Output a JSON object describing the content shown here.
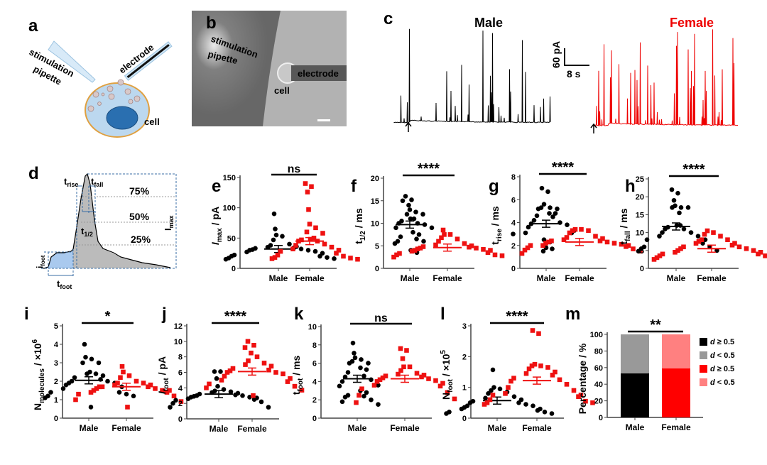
{
  "panel_letters": {
    "a": "a",
    "b": "b",
    "c": "c",
    "d": "d",
    "e": "e",
    "f": "f",
    "g": "g",
    "h": "h",
    "i": "i",
    "j": "j",
    "k": "k",
    "l": "l",
    "m": "m"
  },
  "panel_a": {
    "pipette_label_1": "stimulation",
    "pipette_label_2": "pipette",
    "electrode_label": "electrode",
    "cell_label": "cell",
    "colors": {
      "cytoplasm": "#bcd8ef",
      "membrane": "#e0a040",
      "nucleus": "#2a6fb0"
    }
  },
  "panel_b": {
    "pipette_label_1": "stimulation",
    "pipette_label_2": "pipette",
    "electrode_label": "electrode",
    "cell_label": "cell"
  },
  "panel_c": {
    "male_label": "Male",
    "female_label": "Female",
    "scale_y": "60 pA",
    "scale_x": "8 s",
    "colors": {
      "male": "#000000",
      "female": "#ee0000"
    }
  },
  "panel_d": {
    "t_rise": "t",
    "t_rise_sub": "rise",
    "t_fall": "t",
    "t_fall_sub": "fall",
    "p75": "75%",
    "p50": "50%",
    "p25": "25%",
    "imax": "I",
    "imax_sub": "max",
    "thalf": "t",
    "thalf_sub": "1/2",
    "ifoot": "i",
    "ifoot_sub": "foot",
    "tfoot": "t",
    "tfoot_sub": "foot"
  },
  "chart_data": [
    {
      "panel": "e",
      "type": "scatter",
      "categories": [
        "Male",
        "Female"
      ],
      "ylabel": {
        "base": "I",
        "sub": "max",
        "unit": " / pA",
        "italic": true
      },
      "ylim": [
        0,
        150
      ],
      "yticks": [
        "0",
        "50",
        "100",
        "150"
      ],
      "significance": "ns",
      "series": [
        {
          "values": [
            90,
            65,
            55,
            53,
            47,
            40,
            38,
            36,
            35,
            34,
            33,
            32,
            31,
            30,
            30,
            28,
            27,
            25,
            22,
            20,
            20,
            18,
            17,
            16,
            15
          ],
          "mean": 32
        },
        {
          "values": [
            140,
            135,
            126,
            97,
            73,
            67,
            60,
            58,
            50,
            48,
            47,
            45,
            45,
            40,
            38,
            35,
            32,
            30,
            28,
            25,
            22,
            20,
            18,
            17,
            16,
            15
          ],
          "mean": 45
        }
      ]
    },
    {
      "panel": "f",
      "type": "scatter",
      "categories": [
        "Male",
        "Female"
      ],
      "ylabel": {
        "base": "t",
        "sub": "1/2",
        "unit": " / ms",
        "italic": false
      },
      "ylim": [
        0,
        20
      ],
      "yticks": [
        "0",
        "5",
        "10",
        "15",
        "20"
      ],
      "significance": "****",
      "series": [
        {
          "values": [
            16,
            15,
            15.2,
            14,
            13,
            12.5,
            12,
            12,
            11,
            11,
            10.5,
            10,
            10,
            9.7,
            9,
            9,
            8,
            7.5,
            7,
            6.5,
            6,
            6,
            5.5,
            4,
            3.5
          ],
          "mean": 9.7
        },
        {
          "values": [
            8.5,
            7.5,
            7.5,
            6.8,
            6.5,
            6,
            5.5,
            5.2,
            5,
            4.8,
            4.7,
            4.5,
            4.5,
            4.3,
            4.2,
            4,
            4,
            3.8,
            3.5,
            3.3,
            3,
            3,
            2.8,
            2.5
          ],
          "mean": 4.6
        }
      ]
    },
    {
      "panel": "g",
      "type": "scatter",
      "categories": [
        "Male",
        "Female"
      ],
      "ylabel": {
        "base": "t",
        "sub": "rise",
        "unit": " / ms",
        "italic": false
      },
      "ylim": [
        0,
        8
      ],
      "yticks": [
        "0",
        "2",
        "4",
        "6",
        "8"
      ],
      "significance": "****",
      "series": [
        {
          "values": [
            7,
            6.7,
            5.6,
            5.3,
            5.3,
            5.2,
            5.2,
            4.8,
            4.8,
            4.6,
            4.5,
            4.2,
            4,
            3.9,
            3.8,
            3.6,
            3.3,
            3.1,
            3.1,
            3,
            2.5,
            2.3,
            1.8,
            1.7,
            1.5
          ],
          "mean": 3.9
        },
        {
          "values": [
            3.4,
            3.4,
            3.3,
            3.3,
            3.1,
            2.8,
            2.7,
            2.6,
            2.5,
            2.4,
            2.4,
            2.3,
            2.3,
            2.2,
            2.2,
            2.1,
            2,
            2,
            2,
            1.9,
            1.8,
            1.7,
            1.6,
            1.5,
            1.3
          ],
          "mean": 2.3
        }
      ]
    },
    {
      "panel": "h",
      "type": "scatter",
      "categories": [
        "Male",
        "Female"
      ],
      "ylabel": {
        "base": "t",
        "sub": "fall",
        "unit": " / ms",
        "italic": false
      },
      "ylim": [
        0,
        25
      ],
      "yticks": [
        "0",
        "5",
        "10",
        "15",
        "20",
        "25"
      ],
      "significance": "****",
      "series": [
        {
          "values": [
            22,
            21,
            19,
            17.5,
            17,
            17,
            17,
            15.5,
            12,
            12,
            11.5,
            11,
            11,
            10,
            10,
            9,
            9,
            8,
            8,
            7,
            6,
            6,
            5.5,
            5,
            4.8
          ],
          "mean": 11.7
        },
        {
          "values": [
            10.5,
            10,
            9.5,
            9,
            8,
            8,
            7.5,
            7,
            7,
            6.5,
            6,
            6,
            5.5,
            5.5,
            5,
            5,
            4.5,
            4.5,
            4,
            4,
            3.5,
            3.5,
            3,
            3,
            2.5
          ],
          "mean": 5.5
        }
      ]
    },
    {
      "panel": "i",
      "type": "scatter",
      "categories": [
        "Male",
        "Female"
      ],
      "ylabel": {
        "base": "N",
        "sub": "molecules",
        "unit": " / ×10",
        "sup": "6",
        "italic": false
      },
      "ylim": [
        0,
        5
      ],
      "yticks": [
        "0",
        "1",
        "2",
        "3",
        "4",
        "5"
      ],
      "significance": "*",
      "series": [
        {
          "values": [
            4,
            3.3,
            3.2,
            3,
            3,
            2.5,
            2.4,
            2.4,
            2.3,
            2.2,
            2.1,
            2,
            2,
            1.9,
            1.9,
            1.8,
            1.7,
            1.6,
            1.4,
            1.4,
            1.3,
            1.2,
            1.2,
            1.1,
            0.6
          ],
          "mean": 2.05
        },
        {
          "values": [
            2.8,
            2.5,
            2.3,
            2.2,
            2,
            1.9,
            1.9,
            1.8,
            1.8,
            1.7,
            1.7,
            1.7,
            1.6,
            1.6,
            1.5,
            1.5,
            1.5,
            1.4,
            1.4,
            1.3,
            1.2,
            1,
            0.9,
            0.6
          ],
          "mean": 1.7
        }
      ]
    },
    {
      "panel": "j",
      "type": "scatter",
      "categories": [
        "Male",
        "Female"
      ],
      "ylabel": {
        "base": "I",
        "sub": "foot",
        "unit": " / pA",
        "italic": true
      },
      "ylim": [
        0,
        12
      ],
      "yticks": [
        "0",
        "2",
        "4",
        "6",
        "8",
        "10",
        "12"
      ],
      "significance": "****",
      "series": [
        {
          "values": [
            6.1,
            6.1,
            5.2,
            4.2,
            3.8,
            3.6,
            3.5,
            3.4,
            3.3,
            3.2,
            3.1,
            3,
            3,
            2.9,
            2.8,
            2.8,
            2.7,
            2.6,
            2.5,
            2.4,
            2.2,
            2,
            1.5,
            1.5
          ],
          "mean": 3.2
        },
        {
          "values": [
            10,
            9.5,
            9.2,
            8.5,
            8,
            7.5,
            7.2,
            7,
            6.8,
            6.5,
            6.3,
            6.2,
            6,
            6,
            5.8,
            5.5,
            5.2,
            5,
            4.8,
            4.5,
            4.2,
            4,
            3.7,
            3
          ],
          "mean": 6.1
        }
      ]
    },
    {
      "panel": "k",
      "type": "scatter",
      "categories": [
        "Male",
        "Female"
      ],
      "ylabel": {
        "base": "t",
        "sub": "foot",
        "unit": " / ms",
        "italic": false
      },
      "ylim": [
        0,
        10
      ],
      "yticks": [
        "0",
        "2",
        "4",
        "6",
        "8",
        "10"
      ],
      "significance": "ns",
      "series": [
        {
          "values": [
            8.2,
            7.1,
            6.6,
            6.4,
            6.2,
            6,
            6,
            5.5,
            5.3,
            5,
            4.6,
            4.5,
            4.2,
            4,
            3.6,
            3.5,
            3,
            2.8,
            2.5,
            2.4,
            2.3,
            2,
            1.8,
            1.5
          ],
          "mean": 4.3
        },
        {
          "values": [
            7.6,
            7.4,
            6.5,
            5.6,
            5.6,
            5.2,
            4.9,
            4.8,
            4.7,
            4.6,
            4.5,
            4.4,
            4.3,
            4.2,
            4.1,
            4,
            3.8,
            3.6,
            3.5,
            3.2,
            2.8,
            2.5,
            2.1,
            1.7
          ],
          "mean": 4.3
        }
      ]
    },
    {
      "panel": "l",
      "type": "scatter",
      "categories": [
        "Male",
        "Female"
      ],
      "ylabel": {
        "base": "N",
        "sub": "foot",
        "unit": " / ×10",
        "sup": "5",
        "italic": false
      },
      "ylim": [
        0,
        3
      ],
      "yticks": [
        "0",
        "1",
        "2",
        "3"
      ],
      "significance": "****",
      "series": [
        {
          "values": [
            1.57,
            1,
            0.95,
            0.9,
            0.85,
            0.8,
            0.7,
            0.65,
            0.6,
            0.55,
            0.5,
            0.5,
            0.45,
            0.4,
            0.4,
            0.35,
            0.3,
            0.3,
            0.25,
            0.2,
            0.2,
            0.15,
            0.15
          ],
          "mean": 0.57
        },
        {
          "values": [
            2.85,
            2.75,
            1.75,
            1.7,
            1.7,
            1.65,
            1.6,
            1.5,
            1.45,
            1.4,
            1.3,
            1.25,
            1.2,
            1.1,
            1.0,
            0.9,
            0.8,
            0.75,
            0.75,
            0.7,
            0.6,
            0.55,
            0.5,
            0.5,
            0.45
          ],
          "mean": 1.22
        }
      ]
    },
    {
      "panel": "m",
      "type": "bar",
      "stacked": true,
      "categories": [
        "Male",
        "Female"
      ],
      "ylabel": {
        "base": "Percentage / %",
        "italic": false
      },
      "ylim": [
        0,
        100
      ],
      "yticks": [
        "0",
        "20",
        "40",
        "60",
        "80",
        "100"
      ],
      "significance": "**",
      "series": [
        {
          "name": "d ≥ 0.5",
          "category": "Male",
          "values": [
            53,
            0
          ],
          "color": "#000000"
        },
        {
          "name": "d < 0.5",
          "category": "Male",
          "values": [
            47,
            0
          ],
          "color": "#999999"
        },
        {
          "name": "d ≥ 0.5",
          "category": "Female",
          "values": [
            0,
            59
          ],
          "color": "#ff0000"
        },
        {
          "name": "d < 0.5",
          "category": "Female",
          "values": [
            0,
            41
          ],
          "color": "#ff8080"
        }
      ],
      "legend": "right"
    }
  ],
  "colors": {
    "male": "#000000",
    "female": "#ee1111"
  }
}
